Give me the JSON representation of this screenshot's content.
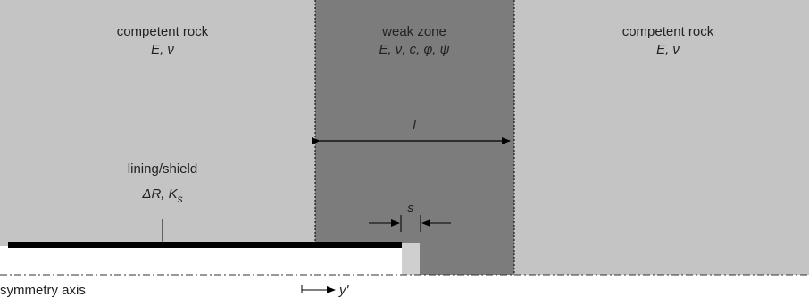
{
  "left_region": {
    "title": "competent rock",
    "params": "E, ν"
  },
  "weak_zone": {
    "title": "weak zone",
    "params": "E, ν, c, φ, ψ",
    "length_label": "l"
  },
  "right_region": {
    "title": "competent rock",
    "params": "E, ν"
  },
  "lining": {
    "title": "lining/shield",
    "params_a": "ΔR, K",
    "params_sub": "s"
  },
  "gap_label": "s",
  "symmetry_axis_label": "symmetry axis",
  "axis_label": "y'",
  "colors": {
    "rock": "#c4c4c4",
    "weak_zone": "#7c7c7c",
    "lining": "#000000",
    "white": "#ffffff"
  }
}
